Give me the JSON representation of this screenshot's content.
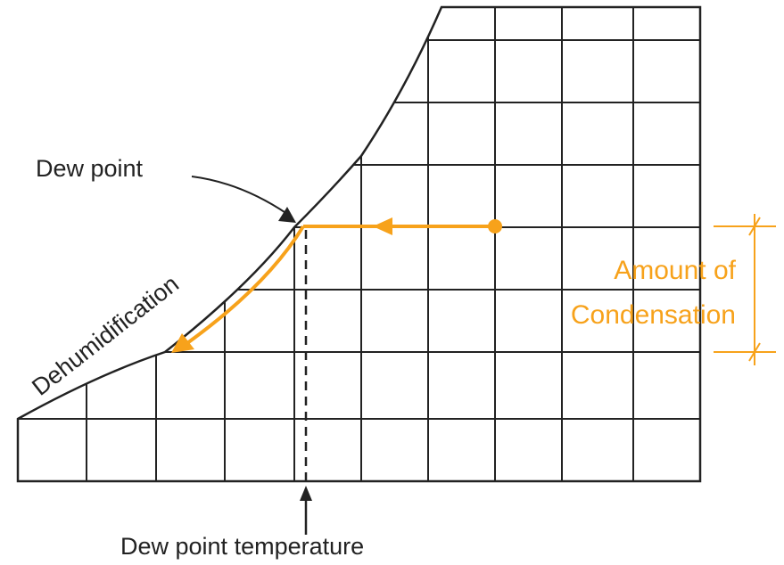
{
  "labels": {
    "dew_point": "Dew point",
    "dehumidification": "Dehumidification",
    "amount_line1": "Amount of",
    "amount_line2": "Condensation",
    "dew_point_temperature": "Dew point temperature"
  }
}
